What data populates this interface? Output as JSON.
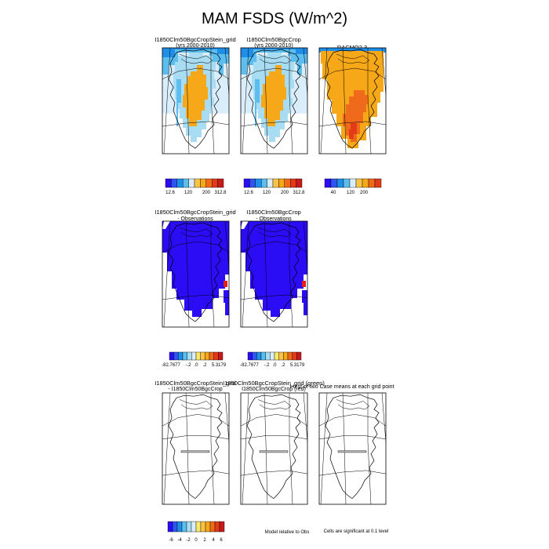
{
  "title": "MAM FSDS (W/m^2)",
  "colors": {
    "blues": [
      "#2a0cf5",
      "#2f55f0",
      "#1e8ee8",
      "#5cbdef",
      "#a8dcf3",
      "#d9eefa"
    ],
    "warm": [
      "#fbe86a",
      "#f9c34a",
      "#f6a818",
      "#ef6a1a",
      "#e33a1a",
      "#c71b1b"
    ],
    "obs_diff_fill": "#2a0cf5",
    "obs_diff_hot": "#e0201a"
  },
  "row1": {
    "panels": [
      {
        "title_line1": "I1850Clm50BgcCropStein_grid",
        "title_line2": "(yrs 2000-2010)"
      },
      {
        "title_line1": "I1850Clm50BgcCrop",
        "title_line2": "(yrs 2000-2010)"
      },
      {
        "title_line1": "RACMO2.3",
        "title_line2": ""
      }
    ],
    "colorbar_ticks_a": [
      "12.6",
      "120",
      "200",
      "312.8"
    ],
    "colorbar_ticks_c": [
      "40",
      "120",
      "200"
    ]
  },
  "row2": {
    "panels": [
      {
        "title_line1": "I1850Clm50BgcCropStein_grid",
        "title_line2": "- Observations"
      },
      {
        "title_line1": "I1850Clm50BgcCrop",
        "title_line2": "- Observations"
      }
    ],
    "colorbar_ticks": [
      "-82.7677",
      "-.2",
      ".0",
      ".2",
      "5.3179"
    ]
  },
  "row3": {
    "panel1_title_line1": "I1850Clm50BgcCropStein_grid",
    "panel1_title_line2": "- I1850Clm50BgcCrop",
    "panel2_title_line1": "I1850Clm50BgcCropStein_grid (green)",
    "panel2_title_line2": "I1850Clm50BgcCrop (red)",
    "panel3_title": "t-test of two Case means at each grid point",
    "colorbar_ticks": [
      "-6",
      "-4",
      "-2",
      "0",
      "2",
      "4",
      "6"
    ],
    "note_model": "Model relative to Obs",
    "note_cells": "Cells are significant at 0.1 level"
  },
  "chart_data": [
    {
      "type": "heatmap",
      "title": "I1850Clm50BgcCropStein_grid (yrs 2000-2010)",
      "colorbar_range": [
        12.6,
        312.8
      ],
      "colorbar_ticks": [
        12.6,
        120,
        200,
        312.8
      ],
      "units": "W/m^2"
    },
    {
      "type": "heatmap",
      "title": "I1850Clm50BgcCrop (yrs 2000-2010)",
      "colorbar_range": [
        12.6,
        312.8
      ],
      "colorbar_ticks": [
        12.6,
        120,
        200,
        312.8
      ],
      "units": "W/m^2"
    },
    {
      "type": "heatmap",
      "title": "RACMO2.3",
      "colorbar_ticks": [
        40,
        120,
        200
      ],
      "units": "W/m^2"
    },
    {
      "type": "heatmap",
      "title": "I1850Clm50BgcCropStein_grid - Observations",
      "colorbar_range": [
        -82.7677,
        5.3179
      ],
      "colorbar_ticks": [
        -82.7677,
        -0.2,
        0.0,
        0.2,
        5.3179
      ]
    },
    {
      "type": "heatmap",
      "title": "I1850Clm50BgcCrop - Observations",
      "colorbar_range": [
        -82.7677,
        5.3179
      ],
      "colorbar_ticks": [
        -82.7677,
        -0.2,
        0.0,
        0.2,
        5.3179
      ]
    },
    {
      "type": "heatmap",
      "title": "I1850Clm50BgcCropStein_grid - I1850Clm50BgcCrop",
      "colorbar_ticks": [
        -6,
        -4,
        -2,
        0,
        2,
        4,
        6
      ]
    }
  ]
}
